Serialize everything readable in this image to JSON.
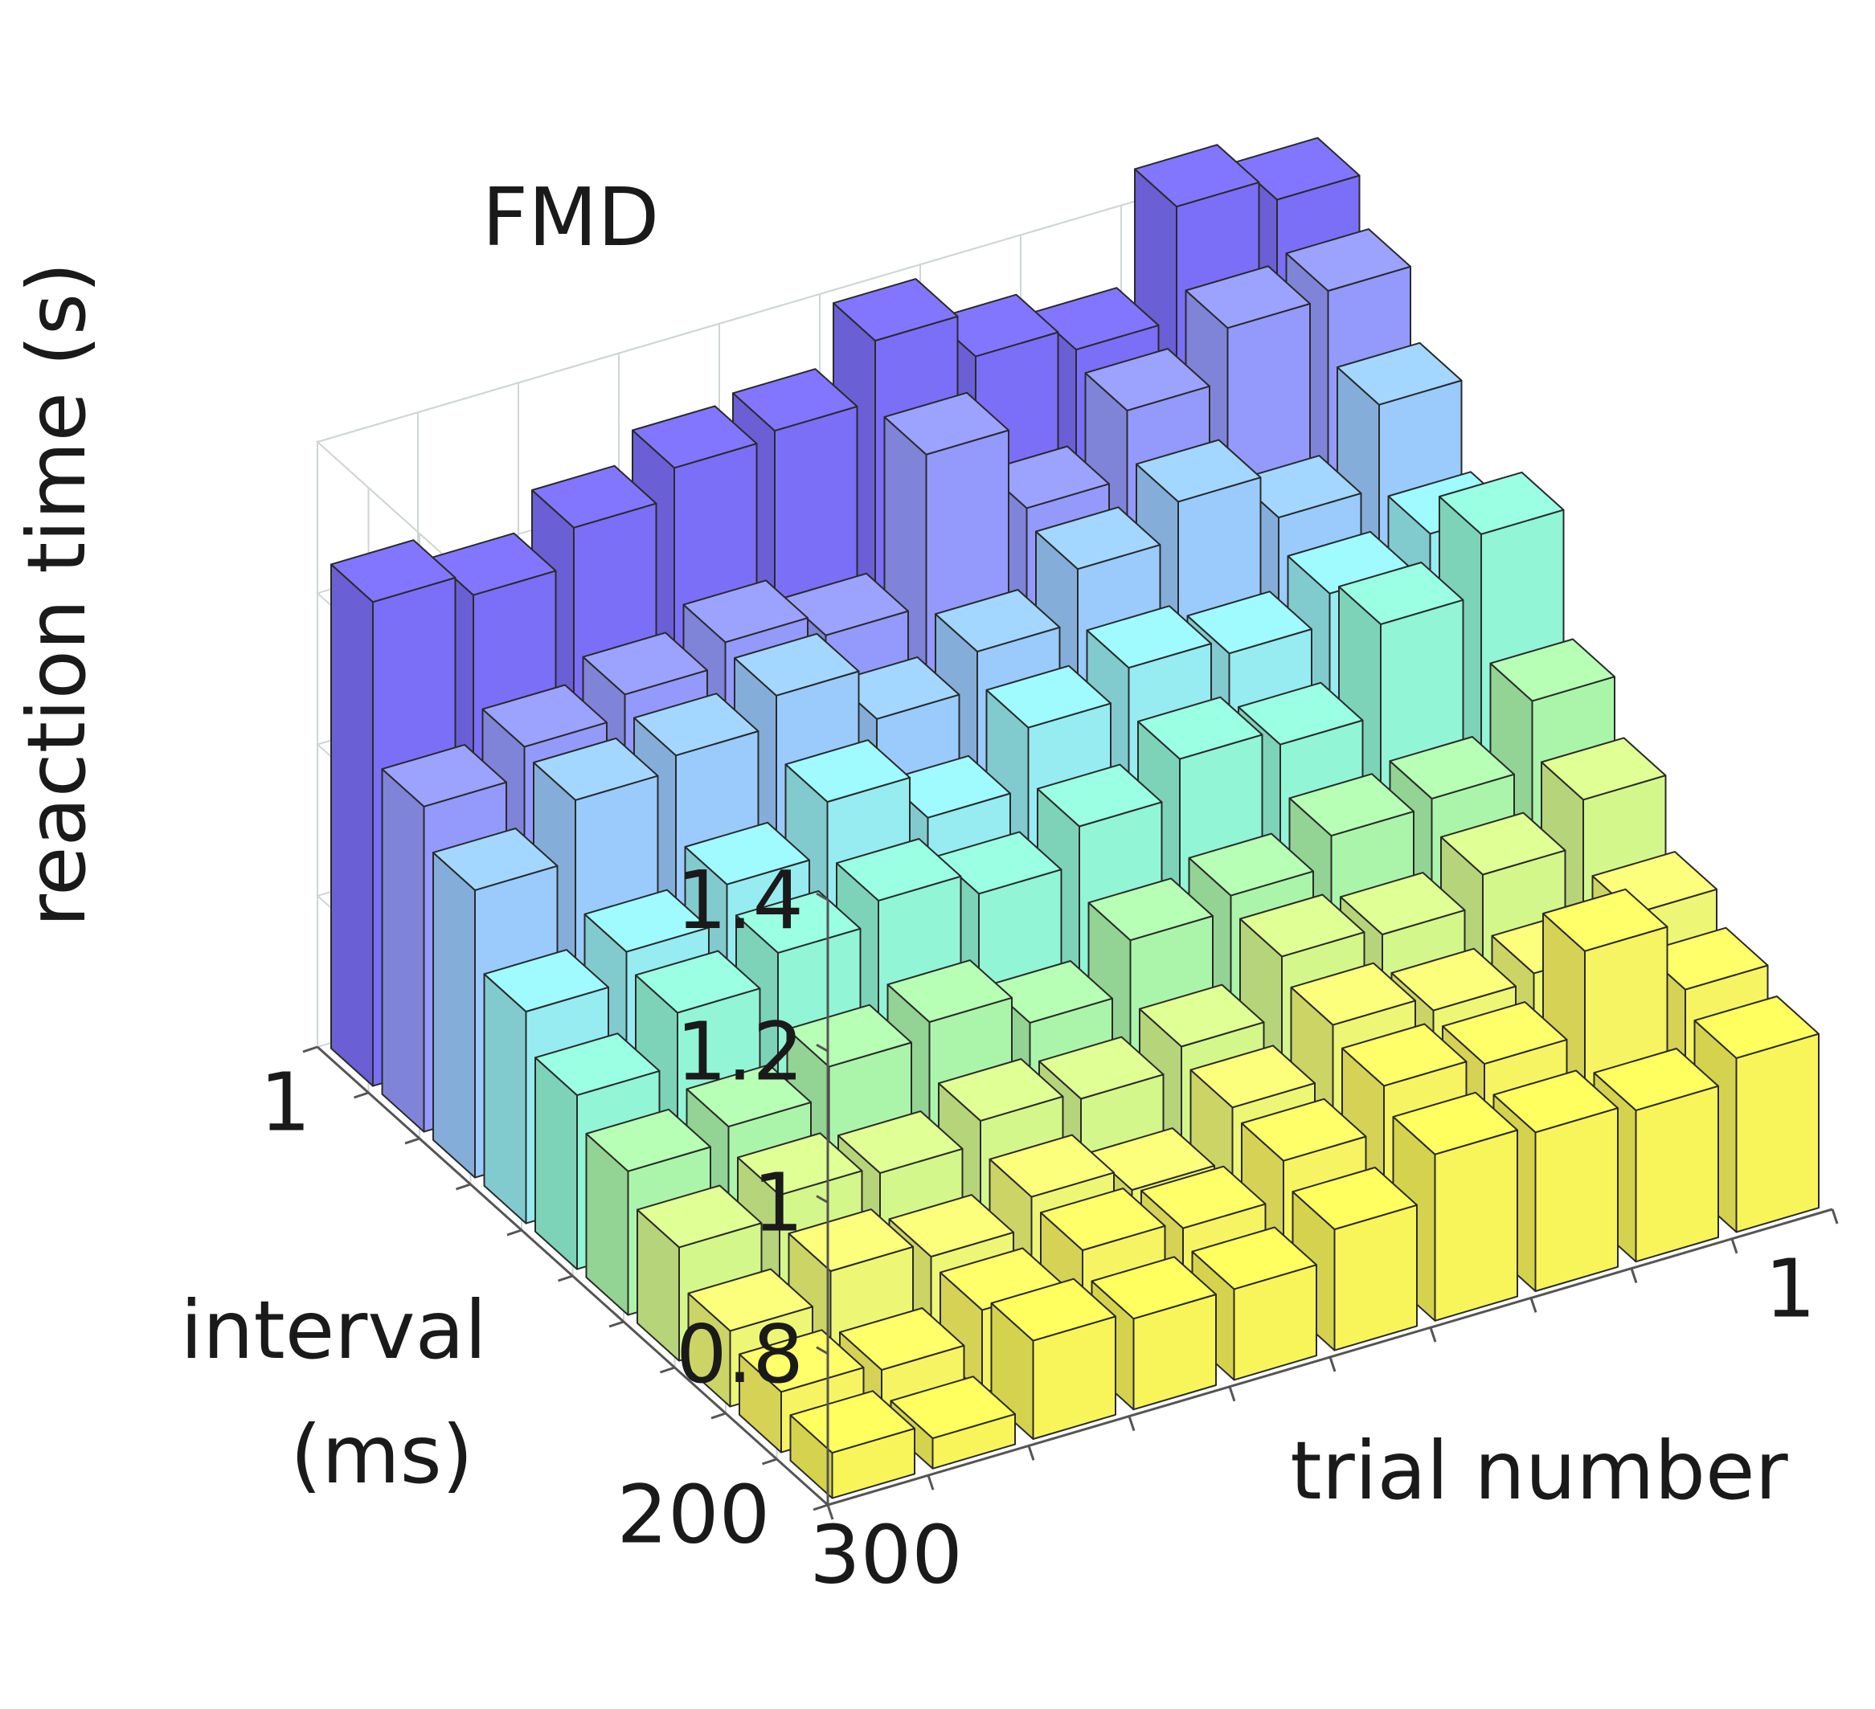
{
  "chart_data": {
    "type": "bar3d",
    "title": "FMD",
    "zlabel": "reaction time (s)",
    "ylabel_line1": "interval",
    "ylabel_line2": "(ms)",
    "xlabel": "trial number",
    "zlim": [
      0.6,
      1.4
    ],
    "zticks": [
      "0.8",
      "1",
      "1.2",
      "1.4"
    ],
    "zticks_values": [
      0.8,
      1.0,
      1.2,
      1.4
    ],
    "ytick_labels": [
      {
        "label": "1",
        "index": 0
      },
      {
        "label": "200",
        "index": 9
      }
    ],
    "xtick_labels": [
      {
        "label": "1",
        "index": 0
      },
      {
        "label": "300",
        "index": 9
      }
    ],
    "colormap": [
      "#7b6ff7",
      "#9aa6fd",
      "#9ae8fb",
      "#8ef5dc",
      "#aff5a5",
      "#e6f880",
      "#f7f467",
      "#f8f55a"
    ],
    "bars": [
      [
        1.24,
        1.21,
        1.26,
        1.3,
        1.31,
        1.39,
        1.33,
        1.3,
        1.45,
        1.42
      ],
      [
        1.03,
        1.07,
        1.1,
        1.13,
        1.1,
        1.3,
        1.19,
        1.28,
        1.35,
        1.36
      ],
      [
        0.98,
        1.06,
        1.08,
        1.12,
        1.05,
        1.1,
        1.17,
        1.22,
        1.16,
        1.27
      ],
      [
        0.88,
        0.92,
        0.97,
        1.04,
        0.98,
        1.06,
        1.1,
        1.08,
        1.12,
        1.16
      ],
      [
        0.83,
        0.9,
        0.94,
        0.97,
        0.94,
        0.99,
        1.04,
        1.02,
        1.14,
        1.22
      ],
      [
        0.79,
        0.81,
        0.85,
        0.87,
        0.83,
        0.9,
        0.92,
        0.96,
        0.97,
        1.06
      ],
      [
        0.75,
        0.78,
        0.77,
        0.8,
        0.79,
        0.82,
        0.9,
        0.89,
        0.93,
        0.99
      ],
      [
        0.7,
        0.74,
        0.72,
        0.76,
        0.73,
        0.8,
        0.87,
        0.85,
        0.86,
        0.9
      ],
      [
        0.68,
        0.67,
        0.71,
        0.75,
        0.74,
        0.79,
        0.85,
        0.84,
        0.95,
        0.86
      ],
      [
        0.66,
        0.64,
        0.73,
        0.72,
        0.72,
        0.76,
        0.82,
        0.81,
        0.8,
        0.83
      ]
    ]
  }
}
